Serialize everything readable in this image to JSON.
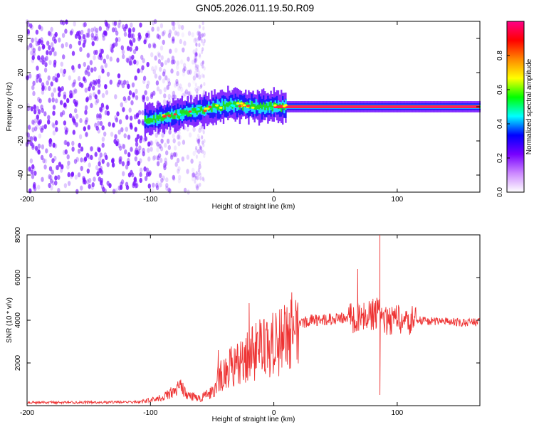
{
  "title": "GN05.2026.011.19.50.R09",
  "chart_data": [
    {
      "type": "heatmap",
      "title": "",
      "xlabel": "Height of straight line (km)",
      "ylabel": "Frequency (Hz)",
      "xlim": [
        -200,
        167
      ],
      "ylim": [
        -50,
        50
      ],
      "xticks": [
        -200,
        -100,
        0,
        100
      ],
      "yticks": [
        -40,
        -20,
        0,
        20,
        40
      ],
      "colorbar": {
        "label": "Normalized spectral amplitude",
        "range": [
          0,
          1
        ],
        "ticks": [
          0.0,
          0.2,
          0.4,
          0.6,
          0.8
        ],
        "colors": [
          "#ffffff",
          "#cc88ff",
          "#7700ff",
          "#0000ff",
          "#00ffff",
          "#00ff00",
          "#ffff00",
          "#ff8800",
          "#ff0000",
          "#ff0088"
        ]
      },
      "series": [
        {
          "x": [
            -105,
            -90,
            -75,
            -60,
            -45,
            -35,
            -25,
            -15,
            -5,
            0,
            10,
            30,
            60,
            100,
            167
          ],
          "values": [
            -8,
            -6,
            -4,
            -2,
            0,
            1,
            1,
            0,
            0,
            0,
            0,
            0,
            0,
            0,
            0
          ]
        }
      ],
      "notes_visible": "broadband noise for heights below about -60 km"
    },
    {
      "type": "line",
      "title": "",
      "xlabel": "Height of straight line (km)",
      "ylabel": "SNR (10 * v/v)",
      "xlim": [
        -200,
        167
      ],
      "ylim": [
        0,
        8000
      ],
      "xticks": [
        -200,
        -100,
        0,
        100
      ],
      "yticks": [
        2000,
        4000,
        6000,
        8000
      ],
      "color": "#ee3333",
      "series": [
        {
          "x": [
            -200,
            -150,
            -110,
            -100,
            -90,
            -80,
            -75,
            -70,
            -60,
            -50,
            -45,
            -40,
            -30,
            -20,
            -10,
            0,
            10,
            20,
            25,
            30,
            40,
            50,
            60,
            70,
            80,
            85,
            90,
            100,
            110,
            115,
            130,
            150,
            167
          ],
          "values": [
            150,
            150,
            170,
            250,
            400,
            700,
            900,
            500,
            350,
            600,
            1300,
            1600,
            2000,
            2400,
            2700,
            2900,
            3200,
            3700,
            3900,
            4000,
            4050,
            4050,
            4100,
            4100,
            4300,
            4300,
            4000,
            4100,
            4000,
            4000,
            3950,
            3900,
            3900
          ]
        }
      ],
      "spikes": [
        {
          "x": 68,
          "value": 6400
        },
        {
          "x": 86,
          "value": 8000
        },
        {
          "x": 86,
          "value": 500
        },
        {
          "x": -20,
          "value": 4800
        },
        {
          "x": -45,
          "value": 2600
        }
      ]
    }
  ]
}
